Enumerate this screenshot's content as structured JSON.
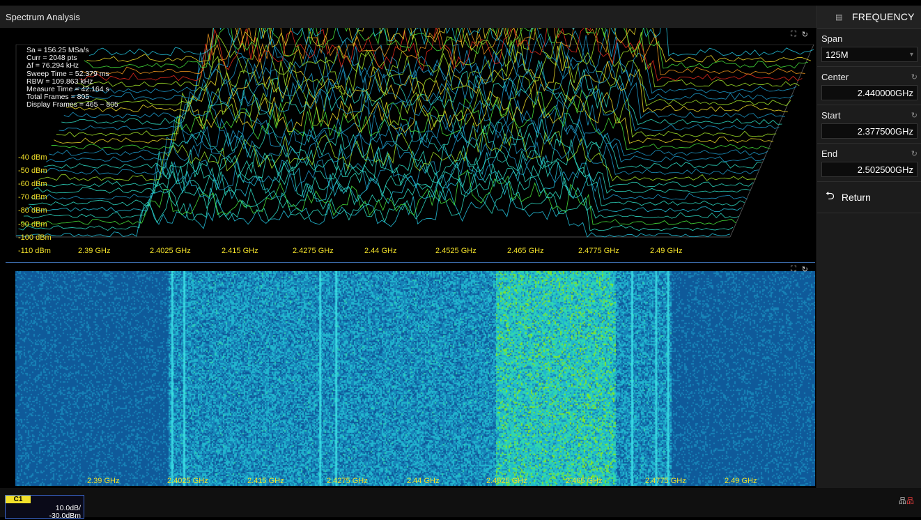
{
  "window": {
    "title": "Spectrum Analysis"
  },
  "panel": {
    "header": "FREQUENCY",
    "span": {
      "label": "Span",
      "value": "125M"
    },
    "center": {
      "label": "Center",
      "value": "2.440000GHz"
    },
    "start": {
      "label": "Start",
      "value": "2.377500GHz"
    },
    "end": {
      "label": "End",
      "value": "2.502500GHz"
    },
    "return_label": "Return"
  },
  "readout": [
    "Sa = 156.25 MSa/s",
    "Curr = 2048 pts",
    "Δf = 76.294 kHz",
    "Sweep Time = 52.379 ms",
    "RBW = 109.863 kHz",
    "Measure Time = 42.164 s",
    "Total Frames = 805",
    "Display Frames = 465 ~ 805"
  ],
  "y_ticks": [
    "-40 dBm",
    "-50 dBm",
    "-60 dBm",
    "-70 dBm",
    "-80 dBm",
    "-90 dBm",
    "-100 dBm",
    "-110 dBm"
  ],
  "x_ticks": [
    "2.39 GHz",
    "2.4025 GHz",
    "2.415 GHz",
    "2.4275 GHz",
    "2.44 GHz",
    "2.4525 GHz",
    "2.465 GHz",
    "2.4775 GHz",
    "2.49 GHz"
  ],
  "channel": {
    "name": "C1",
    "scale": "10.0dB/",
    "offset": "-30.0dBm"
  },
  "colors": {
    "axis_label": "#f2e12a",
    "waterfall_bg": "#0a4f8f",
    "accent": "#3a64c8"
  }
}
